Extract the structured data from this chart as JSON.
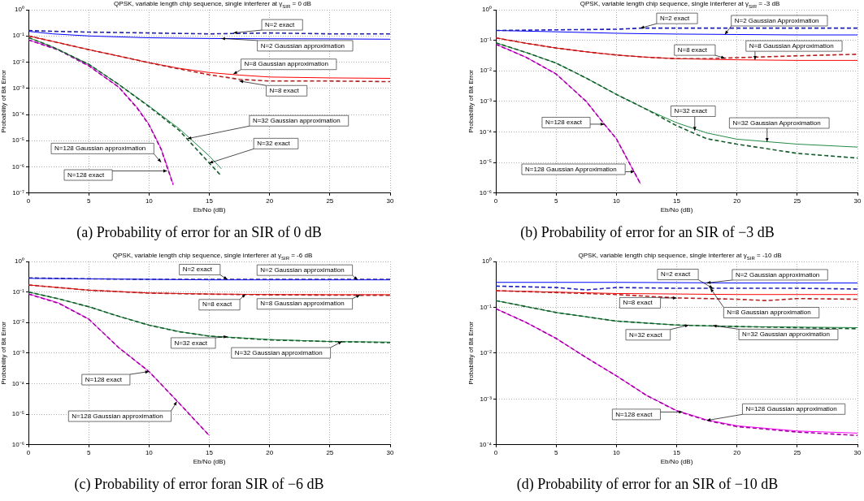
{
  "chart_data": [
    {
      "type": "line",
      "title": "QPSK, variable length chip sequence, single interferer at γ$_{SIR}$ = 0 dB",
      "xlabel": "Eb/No (dB)",
      "ylabel": "Probability of Bit Error",
      "log": "y",
      "grid": true,
      "xlim": [
        0,
        30
      ],
      "xticks": [
        0,
        5,
        10,
        15,
        20,
        25,
        30
      ],
      "ylim": [
        1e-07,
        1
      ],
      "yticks": [
        {
          "value": 1e-07,
          "label": "10⁻⁷"
        },
        {
          "value": 1e-06,
          "label": "10⁻⁶"
        },
        {
          "value": 1e-05,
          "label": "10⁻⁵"
        },
        {
          "value": 0.0001,
          "label": "10⁻⁴"
        },
        {
          "value": 0.001,
          "label": "10⁻³"
        },
        {
          "value": 0.01,
          "label": "10⁻²"
        },
        {
          "value": 0.1,
          "label": "10⁻¹"
        },
        {
          "value": 1,
          "label": "10⁰"
        }
      ],
      "series": [
        {
          "color": "#2020b0",
          "line_style": "dashed",
          "x": [
            0,
            2,
            5,
            10,
            15,
            20,
            25,
            30
          ],
          "values": [
            0.16,
            0.15,
            0.14,
            0.13,
            0.12,
            0.13,
            0.12,
            0.12
          ]
        },
        {
          "color": "#0000ff",
          "line_style": "solid",
          "x": [
            0,
            2,
            5,
            10,
            15,
            20,
            25,
            30
          ],
          "values": [
            0.15,
            0.12,
            0.1,
            0.085,
            0.08,
            0.078,
            0.077,
            0.075
          ]
        },
        {
          "color": "#b02020",
          "line_style": "dashed",
          "x": [
            0,
            2.5,
            5,
            7.5,
            10,
            12.5,
            15,
            17.5,
            20,
            25,
            30
          ],
          "values": [
            0.1,
            0.055,
            0.03,
            0.017,
            0.0095,
            0.0055,
            0.0033,
            0.0022,
            0.0019,
            0.0019,
            0.0018
          ]
        },
        {
          "color": "#ff0000",
          "line_style": "solid",
          "x": [
            0,
            2.5,
            5,
            7.5,
            10,
            12.5,
            15,
            17.5,
            20,
            25,
            30
          ],
          "values": [
            0.1,
            0.055,
            0.03,
            0.017,
            0.0095,
            0.0058,
            0.004,
            0.0032,
            0.0027,
            0.0025,
            0.0024
          ]
        },
        {
          "color": "#155c2c",
          "line_style": "dashed",
          "x": [
            0,
            2,
            5,
            7.5,
            10,
            12.5,
            15,
            16
          ],
          "values": [
            0.087,
            0.038,
            0.0083,
            0.0014,
            0.0002,
            2.5e-05,
            1.4e-06,
            4.5e-07
          ]
        },
        {
          "color": "#238b45",
          "line_style": "solid",
          "x": [
            0,
            2,
            5,
            7.5,
            10,
            12.5,
            15,
            16
          ],
          "values": [
            0.087,
            0.038,
            0.0083,
            0.0014,
            0.00021,
            2.9e-05,
            2.6e-06,
            8.5e-07
          ]
        },
        {
          "color": "#a000a0",
          "line_style": "dashed",
          "x": [
            0,
            2.5,
            5,
            7.5,
            9,
            10,
            11,
            12
          ],
          "values": [
            0.07,
            0.029,
            0.0072,
            0.0011,
            0.00018,
            4e-05,
            4.8e-06,
            2.1e-07
          ]
        },
        {
          "color": "#ff00ff",
          "line_style": "solid",
          "x": [
            0,
            2.5,
            5,
            7.5,
            9,
            10,
            11,
            12
          ],
          "values": [
            0.071,
            0.03,
            0.0074,
            0.0011,
            0.00019,
            4.2e-05,
            5e-06,
            2.2e-07
          ]
        }
      ],
      "annotations": [
        {
          "text": "N=2 exact",
          "x": 17,
          "y": 0.13
        },
        {
          "text": "N=2 Gaussian approximation",
          "x": 16,
          "y": 0.08
        },
        {
          "text": "N=8 Gaussian approximation",
          "x": 17,
          "y": 0.0035
        },
        {
          "text": "N=8 exact",
          "x": 17.5,
          "y": 0.0019
        },
        {
          "text": "N=32 Gaussian approximation",
          "x": 13.2,
          "y": 1.2e-05
        },
        {
          "text": "N=32 exact",
          "x": 15,
          "y": 1.4e-06
        },
        {
          "text": "N=128 Gaussian approximation",
          "x": 11,
          "y": 1.5e-06
        },
        {
          "text": "N=128 exact",
          "x": 11.5,
          "y": 7e-07
        },
        "(a) Probability of error for an SIR of 0 dB"
      ]
    },
    {
      "type": "line",
      "title": "QPSK, variable length chip sequence, single interferer at γ$_{SIR}$ = -3 dB",
      "xlabel": "Eb/No (dB)",
      "ylabel": "Probability of Bit Error",
      "log": "y",
      "grid": true,
      "xlim": [
        0,
        30
      ],
      "xticks": [
        0,
        5,
        10,
        15,
        20,
        25,
        30
      ],
      "ylim": [
        1e-06,
        1
      ],
      "yticks": [
        {
          "value": 1e-06,
          "label": "10⁻⁶"
        },
        {
          "value": 1e-05,
          "label": "10⁻⁵"
        },
        {
          "value": 0.0001,
          "label": "10⁻⁴"
        },
        {
          "value": 0.001,
          "label": "10⁻³"
        },
        {
          "value": 0.01,
          "label": "10⁻²"
        },
        {
          "value": 0.1,
          "label": "10⁻¹"
        },
        {
          "value": 1,
          "label": "10⁰"
        }
      ],
      "series": [
        {
          "color": "#2020b0",
          "line_style": "dashed",
          "x": [
            0,
            5,
            10,
            12,
            15,
            20,
            25,
            30
          ],
          "values": [
            0.21,
            0.22,
            0.23,
            0.25,
            0.25,
            0.25,
            0.25,
            0.25
          ]
        },
        {
          "color": "#0000ff",
          "line_style": "solid",
          "x": [
            0,
            5,
            10,
            12,
            15,
            20,
            25,
            30
          ],
          "values": [
            0.21,
            0.19,
            0.17,
            0.165,
            0.16,
            0.155,
            0.15,
            0.15
          ]
        },
        {
          "color": "#b02020",
          "line_style": "dashed",
          "x": [
            0,
            2.5,
            5,
            7.5,
            10,
            12.5,
            15,
            17.5,
            20,
            25,
            30
          ],
          "values": [
            0.12,
            0.08,
            0.056,
            0.042,
            0.033,
            0.028,
            0.025,
            0.025,
            0.027,
            0.031,
            0.035
          ]
        },
        {
          "color": "#ff0000",
          "line_style": "solid",
          "x": [
            0,
            2.5,
            5,
            7.5,
            10,
            12.5,
            15,
            17.5,
            20,
            25,
            30
          ],
          "values": [
            0.12,
            0.08,
            0.056,
            0.042,
            0.033,
            0.028,
            0.025,
            0.024,
            0.023,
            0.022,
            0.022
          ]
        },
        {
          "color": "#155c2c",
          "line_style": "dashed",
          "x": [
            0,
            2.5,
            5,
            7.5,
            10,
            12.5,
            15,
            17.5,
            20,
            25,
            30
          ],
          "values": [
            0.083,
            0.04,
            0.018,
            0.0058,
            0.0017,
            0.00055,
            0.00016,
            6e-05,
            4e-05,
            2e-05,
            1.4e-05
          ]
        },
        {
          "color": "#238b45",
          "line_style": "solid",
          "x": [
            0,
            2.5,
            5,
            7.5,
            10,
            12.5,
            15,
            17.5,
            20,
            25,
            30
          ],
          "values": [
            0.083,
            0.04,
            0.018,
            0.0058,
            0.0017,
            0.00055,
            0.0002,
            9.3e-05,
            5.8e-05,
            4e-05,
            3.2e-05
          ]
        },
        {
          "color": "#a000a0",
          "line_style": "dashed",
          "x": [
            0,
            2.5,
            5,
            7.5,
            9,
            10,
            11,
            12
          ],
          "values": [
            0.074,
            0.028,
            0.0079,
            0.001,
            0.00018,
            6e-05,
            1.1e-05,
            2e-06
          ]
        },
        {
          "color": "#ff00ff",
          "line_style": "solid",
          "x": [
            0,
            2.5,
            5,
            7.5,
            9,
            10,
            11,
            12
          ],
          "values": [
            0.075,
            0.028,
            0.008,
            0.001,
            0.00018,
            6e-05,
            1.1e-05,
            2e-06
          ]
        }
      ],
      "annotations": [
        {
          "text": "N=2 exact",
          "x": 12,
          "y": 0.25
        },
        {
          "text": "N=2 Gaussian Approximation",
          "x": 19,
          "y": 0.155
        },
        {
          "text": "N=8 exact",
          "x": 19,
          "y": 0.026
        },
        {
          "text": "N=8 Gaussian Approximation",
          "x": 21.5,
          "y": 0.023
        },
        {
          "text": "N=32 exact",
          "x": 16.5,
          "y": 0.00011
        },
        {
          "text": "N=32 Gaussian Approximation",
          "x": 22.5,
          "y": 4.8e-05
        },
        {
          "text": "N=128 exact",
          "x": 9,
          "y": 0.00018
        },
        {
          "text": "N=128 Gaussian Approximation",
          "x": 11.5,
          "y": 5e-06
        },
        "(b) Probability of error for an SIR of −3 dB"
      ]
    },
    {
      "type": "line",
      "title": "QPSK, variable length chip sequence, single interferer at γ$_{SIR}$ = -6 dB",
      "xlabel": "Eb/No (dB)",
      "ylabel": "Probability of Bit Error",
      "log": "y",
      "grid": true,
      "xlim": [
        0,
        30
      ],
      "xticks": [
        0,
        5,
        10,
        15,
        20,
        25,
        30
      ],
      "ylim": [
        1e-06,
        1
      ],
      "yticks": [
        {
          "value": 1e-06,
          "label": "10⁻⁶"
        },
        {
          "value": 1e-05,
          "label": "10⁻⁵"
        },
        {
          "value": 0.0001,
          "label": "10⁻⁴"
        },
        {
          "value": 0.001,
          "label": "10⁻³"
        },
        {
          "value": 0.01,
          "label": "10⁻²"
        },
        {
          "value": 0.1,
          "label": "10⁻¹"
        },
        {
          "value": 1,
          "label": "10⁰"
        }
      ],
      "series": [
        {
          "color": "#2020b0",
          "line_style": "dashed",
          "x": [
            0,
            5,
            10,
            15,
            20,
            25,
            30
          ],
          "values": [
            0.29,
            0.27,
            0.26,
            0.26,
            0.26,
            0.26,
            0.26
          ]
        },
        {
          "color": "#0000ff",
          "line_style": "solid",
          "x": [
            0,
            5,
            10,
            15,
            20,
            25,
            30
          ],
          "values": [
            0.28,
            0.27,
            0.26,
            0.25,
            0.25,
            0.25,
            0.25
          ]
        },
        {
          "color": "#b02020",
          "line_style": "dashed",
          "x": [
            0,
            5,
            10,
            15,
            20,
            25,
            30
          ],
          "values": [
            0.17,
            0.115,
            0.092,
            0.085,
            0.081,
            0.079,
            0.078
          ]
        },
        {
          "color": "#ff0000",
          "line_style": "solid",
          "x": [
            0,
            5,
            10,
            15,
            20,
            25,
            30
          ],
          "values": [
            0.17,
            0.115,
            0.093,
            0.086,
            0.083,
            0.082,
            0.082
          ]
        },
        {
          "color": "#155c2c",
          "line_style": "dashed",
          "x": [
            0,
            2.5,
            5,
            7.5,
            10,
            12.5,
            15,
            20,
            25,
            30
          ],
          "values": [
            0.1,
            0.06,
            0.033,
            0.016,
            0.0082,
            0.005,
            0.0036,
            0.0027,
            0.0024,
            0.0022
          ]
        },
        {
          "color": "#238b45",
          "line_style": "solid",
          "x": [
            0,
            2.5,
            5,
            7.5,
            10,
            12.5,
            15,
            20,
            25,
            30
          ],
          "values": [
            0.1,
            0.06,
            0.033,
            0.016,
            0.0083,
            0.0051,
            0.0036,
            0.0028,
            0.0024,
            0.0023
          ]
        },
        {
          "color": "#a000a0",
          "line_style": "dashed",
          "x": [
            0,
            2.5,
            5,
            7.5,
            10,
            12.5,
            15
          ],
          "values": [
            0.086,
            0.043,
            0.013,
            0.0015,
            0.00025,
            2.3e-05,
            2e-06
          ]
        },
        {
          "color": "#ff00ff",
          "line_style": "solid",
          "x": [
            0,
            2.5,
            5,
            7.5,
            10,
            12.5,
            15
          ],
          "values": [
            0.087,
            0.044,
            0.013,
            0.0015,
            0.00025,
            2.3e-05,
            2e-06
          ]
        }
      ],
      "annotations": [
        {
          "text": "N=2 exact",
          "x": 16.5,
          "y": 0.26
        },
        {
          "text": "N=2 Gaussian approximation",
          "x": 27.3,
          "y": 0.25
        },
        {
          "text": "N=8 exact",
          "x": 18,
          "y": 0.085
        },
        {
          "text": "N=8 Gaussian approximation",
          "x": 27.5,
          "y": 0.08
        },
        {
          "text": "N=32 exact",
          "x": 16.5,
          "y": 0.0035
        },
        {
          "text": "N=32 Gaussian approximation",
          "x": 26,
          "y": 0.0024
        },
        {
          "text": "N=128 exact",
          "x": 10,
          "y": 0.00025
        },
        {
          "text": "N=128 Gaussian approximation",
          "x": 12.3,
          "y": 2.6e-05
        },
        "(c) Probability of error foran SIR of −6 dB"
      ]
    },
    {
      "type": "line",
      "title": "QPSK, variable length chip sequence, single interferer at γ$_{SIR}$ = -10 dB",
      "xlabel": "Eb/No (dB)",
      "ylabel": "Probability of Bit Error",
      "log": "y",
      "grid": true,
      "xlim": [
        0,
        30
      ],
      "xticks": [
        0,
        5,
        10,
        15,
        20,
        25,
        30
      ],
      "ylim": [
        0.0001,
        1
      ],
      "yticks": [
        {
          "value": 0.0001,
          "label": "10⁻⁴"
        },
        {
          "value": 0.001,
          "label": "10⁻³"
        },
        {
          "value": 0.01,
          "label": "10⁻²"
        },
        {
          "value": 0.1,
          "label": "10⁻¹"
        },
        {
          "value": 1,
          "label": "10⁰"
        }
      ],
      "series": [
        {
          "color": "#2020b0",
          "line_style": "dashed",
          "x": [
            0,
            2.5,
            5,
            7.5,
            10,
            15,
            20,
            25,
            30
          ],
          "values": [
            0.29,
            0.28,
            0.27,
            0.24,
            0.27,
            0.26,
            0.26,
            0.26,
            0.25
          ]
        },
        {
          "color": "#0000ff",
          "line_style": "solid",
          "x": [
            0,
            10,
            20,
            30
          ],
          "values": [
            0.35,
            0.35,
            0.34,
            0.34
          ]
        },
        {
          "color": "#b02020",
          "line_style": "dashed",
          "x": [
            0,
            5,
            10,
            15,
            20,
            22.5,
            25,
            30
          ],
          "values": [
            0.23,
            0.21,
            0.19,
            0.16,
            0.15,
            0.14,
            0.155,
            0.15
          ]
        },
        {
          "color": "#ff0000",
          "line_style": "solid",
          "x": [
            0,
            10,
            20,
            30
          ],
          "values": [
            0.23,
            0.2,
            0.19,
            0.19
          ]
        },
        {
          "color": "#155c2c",
          "line_style": "dashed",
          "x": [
            0,
            5,
            10,
            15,
            20,
            25,
            30
          ],
          "values": [
            0.14,
            0.077,
            0.05,
            0.041,
            0.038,
            0.036,
            0.034
          ]
        },
        {
          "color": "#238b45",
          "line_style": "solid",
          "x": [
            0,
            5,
            10,
            15,
            20,
            25,
            30
          ],
          "values": [
            0.14,
            0.077,
            0.05,
            0.041,
            0.038,
            0.037,
            0.036
          ]
        },
        {
          "color": "#a000a0",
          "line_style": "dashed",
          "x": [
            0,
            2.5,
            5,
            7.5,
            10,
            12.5,
            15,
            17.5,
            20,
            25,
            30
          ],
          "values": [
            0.093,
            0.047,
            0.021,
            0.008,
            0.0032,
            0.0012,
            0.00055,
            0.00034,
            0.00025,
            0.00019,
            0.00016
          ]
        },
        {
          "color": "#ff00ff",
          "line_style": "solid",
          "x": [
            0,
            2.5,
            5,
            7.5,
            10,
            12.5,
            15,
            17.5,
            20,
            25,
            30
          ],
          "values": [
            0.093,
            0.047,
            0.021,
            0.008,
            0.0032,
            0.0012,
            0.00056,
            0.00035,
            0.00026,
            0.0002,
            0.00018
          ]
        }
      ],
      "annotations": [
        {
          "text": "N=2 exact",
          "x": 18,
          "y": 0.26
        },
        {
          "text": "N=2 Gaussian approximation",
          "x": 17.5,
          "y": 0.34
        },
        {
          "text": "N=8 exact",
          "x": 15,
          "y": 0.16
        },
        {
          "text": "N=8 Gaussian approximation",
          "x": 17.8,
          "y": 0.26
        },
        {
          "text": "N=32 exact",
          "x": 16,
          "y": 0.041
        },
        {
          "text": "N=32 Gaussian approximation",
          "x": 18,
          "y": 0.04
        },
        {
          "text": "N=128 exact",
          "x": 15.5,
          "y": 0.00052
        },
        {
          "text": "N=128 Gaussian approximation",
          "x": 17.5,
          "y": 0.00034
        },
        "(d) Probability of error for an SIR of −10 dB"
      ]
    }
  ]
}
